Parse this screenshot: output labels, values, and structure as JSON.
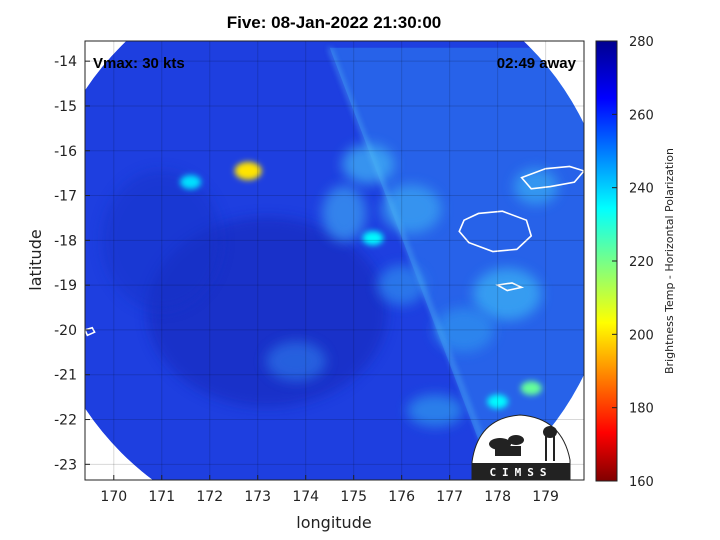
{
  "chart_data": {
    "type": "heatmap",
    "title": "Five: 08-Jan-2022 21:30:00",
    "xlabel": "longitude",
    "ylabel": "latitude",
    "xlim": [
      169.4,
      179.8
    ],
    "ylim": [
      -23.35,
      -13.55
    ],
    "xticks": [
      170,
      171,
      172,
      173,
      174,
      175,
      176,
      177,
      178,
      179
    ],
    "yticks": [
      -14,
      -15,
      -16,
      -17,
      -18,
      -19,
      -20,
      -21,
      -22,
      -23
    ],
    "grid": true,
    "annotations": {
      "left": "Vmax: 30 kts",
      "right": "02:49 away"
    },
    "colorbar": {
      "label": "Brightness Temp - Horizontal Polarization",
      "range": [
        160,
        280
      ],
      "ticks": [
        160,
        180,
        200,
        220,
        240,
        260,
        280
      ],
      "colormap": "jet"
    },
    "swath": {
      "center": [
        174.4,
        -18.2
      ],
      "radius_deg": 6.0
    },
    "features": [
      {
        "lon": 172.8,
        "lat": -16.45,
        "value": 200
      },
      {
        "lon": 171.6,
        "lat": -16.7,
        "value": 238
      },
      {
        "lon": 175.4,
        "lat": -17.95,
        "value": 235
      },
      {
        "lon": 178.7,
        "lat": -21.3,
        "value": 222
      },
      {
        "lon": 178.0,
        "lat": -21.6,
        "value": 235
      }
    ],
    "logo_text": "CIMSS"
  },
  "colors": {
    "background": "#ffffff",
    "swath_base": "#1e3fe0",
    "coast": "#ffffff"
  }
}
